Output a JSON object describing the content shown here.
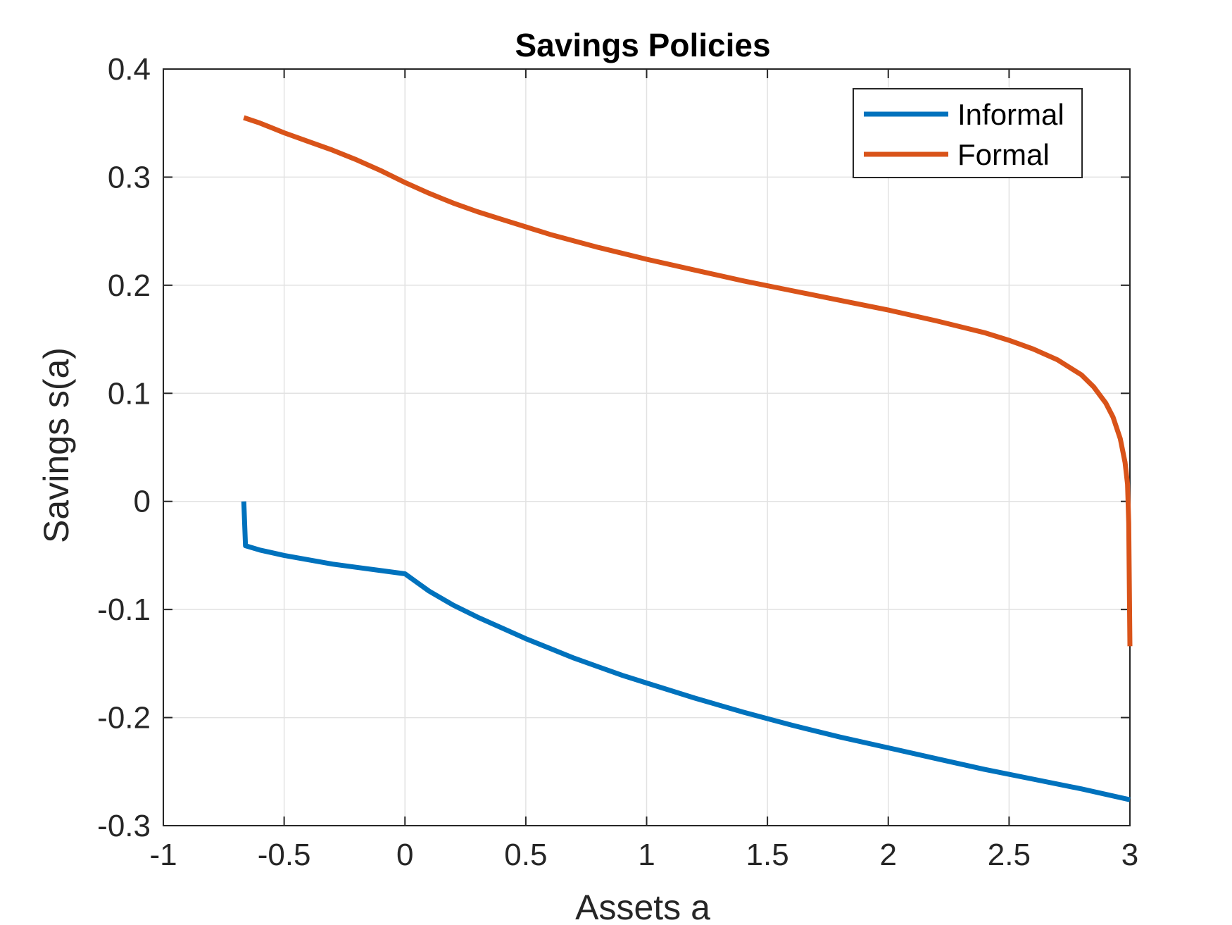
{
  "chart_data": {
    "type": "line",
    "title": "Savings Policies",
    "xlabel": "Assets a",
    "ylabel": "Savings s(a)",
    "xlim": [
      -1,
      3
    ],
    "ylim": [
      -0.3,
      0.4
    ],
    "xticks": [
      -1,
      -0.5,
      0,
      0.5,
      1,
      1.5,
      2,
      2.5,
      3
    ],
    "xtick_labels": [
      "-1",
      "-0.5",
      "0",
      "0.5",
      "1",
      "1.5",
      "2",
      "2.5",
      "3"
    ],
    "yticks": [
      -0.3,
      -0.2,
      -0.1,
      0,
      0.1,
      0.2,
      0.3,
      0.4
    ],
    "ytick_labels": [
      "-0.3",
      "-0.2",
      "-0.1",
      "0",
      "0.1",
      "0.2",
      "0.3",
      "0.4"
    ],
    "grid": true,
    "legend_position": "top-right",
    "series": [
      {
        "name": "Informal",
        "color": "#0072BD",
        "x": [
          -0.667,
          -0.66,
          -0.6,
          -0.5,
          -0.4,
          -0.3,
          -0.2,
          -0.1,
          0,
          0.05,
          0.1,
          0.2,
          0.3,
          0.4,
          0.5,
          0.6,
          0.7,
          0.8,
          0.9,
          1.0,
          1.2,
          1.4,
          1.6,
          1.8,
          2.0,
          2.2,
          2.4,
          2.6,
          2.8,
          3.0
        ],
        "y": [
          0.0,
          -0.041,
          -0.045,
          -0.05,
          -0.054,
          -0.058,
          -0.061,
          -0.064,
          -0.067,
          -0.075,
          -0.083,
          -0.096,
          -0.107,
          -0.117,
          -0.127,
          -0.136,
          -0.145,
          -0.153,
          -0.161,
          -0.168,
          -0.182,
          -0.195,
          -0.207,
          -0.218,
          -0.228,
          -0.238,
          -0.248,
          -0.257,
          -0.266,
          -0.276
        ]
      },
      {
        "name": "Formal",
        "color": "#D95319",
        "x": [
          -0.667,
          -0.6,
          -0.5,
          -0.4,
          -0.3,
          -0.2,
          -0.1,
          0,
          0.1,
          0.2,
          0.3,
          0.4,
          0.5,
          0.6,
          0.8,
          1.0,
          1.2,
          1.4,
          1.6,
          1.8,
          2.0,
          2.2,
          2.4,
          2.5,
          2.6,
          2.7,
          2.8,
          2.85,
          2.9,
          2.93,
          2.96,
          2.98,
          2.99,
          2.995,
          3.0
        ],
        "y": [
          0.355,
          0.35,
          0.341,
          0.333,
          0.325,
          0.316,
          0.306,
          0.295,
          0.285,
          0.276,
          0.268,
          0.261,
          0.254,
          0.247,
          0.235,
          0.224,
          0.214,
          0.204,
          0.195,
          0.186,
          0.177,
          0.167,
          0.156,
          0.149,
          0.141,
          0.131,
          0.117,
          0.106,
          0.091,
          0.078,
          0.058,
          0.036,
          0.016,
          -0.02,
          -0.134
        ]
      }
    ]
  }
}
